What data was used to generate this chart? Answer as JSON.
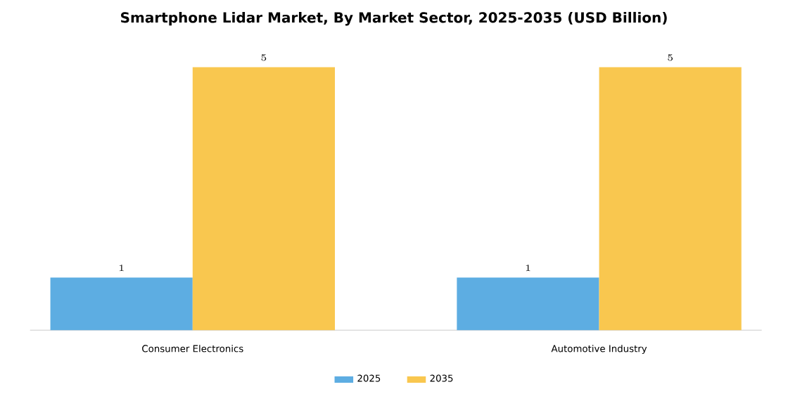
{
  "chart_data": {
    "type": "bar",
    "title": "Smartphone Lidar Market, By Market Sector, 2025-2035 (USD Billion)",
    "categories": [
      "Consumer Electronics",
      "Automotive Industry"
    ],
    "series": [
      {
        "name": "2025",
        "color": "#5dade2",
        "values": [
          1,
          1
        ]
      },
      {
        "name": "2035",
        "color": "#f9c74f",
        "values": [
          5,
          5
        ]
      }
    ],
    "data_labels": true,
    "legend": "bottom"
  }
}
